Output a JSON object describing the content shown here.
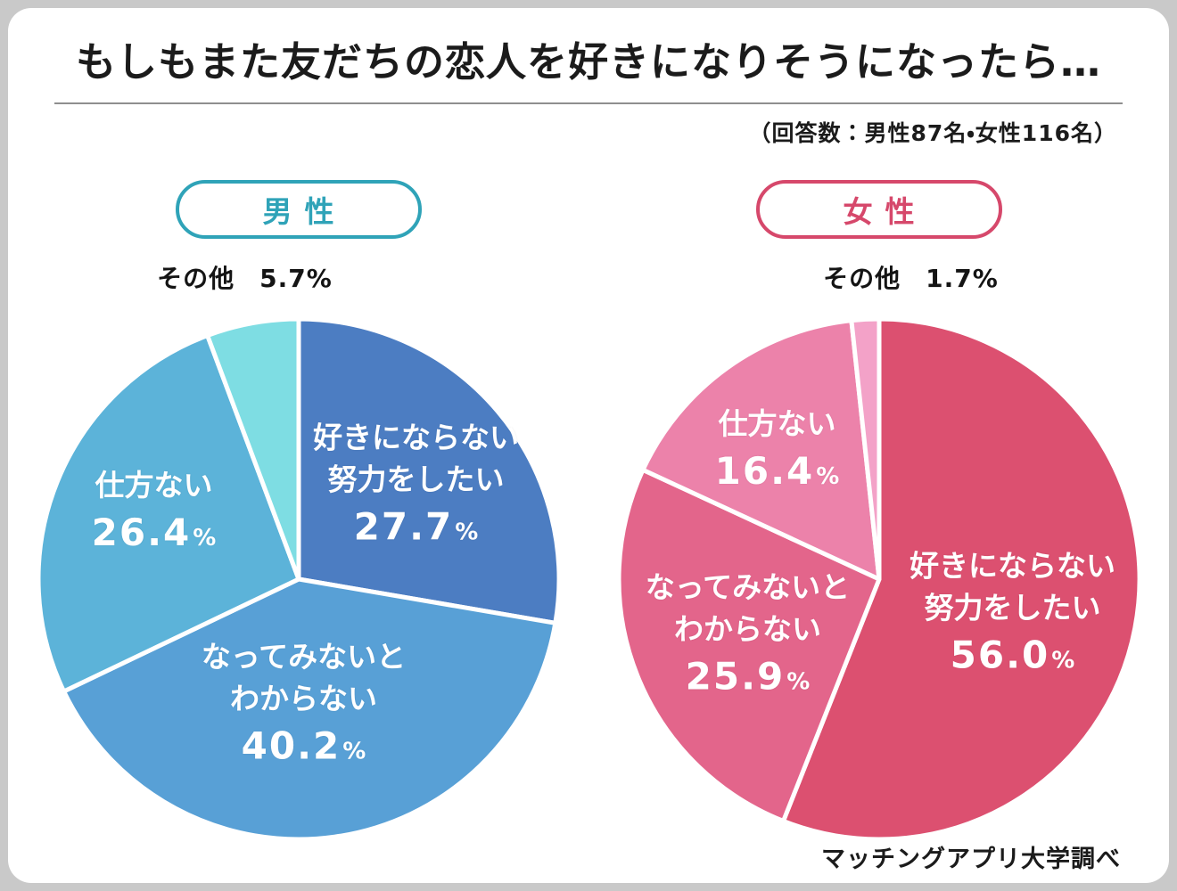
{
  "title": "もしもまた友だちの恋人を好きになりそうになったら…",
  "subtitle": "（回答数：男性87名・女性116名）",
  "source": "マッチングアプリ大学調べ",
  "chart_data": [
    {
      "type": "pie",
      "title": "男性",
      "unit": "%",
      "accent_color": "#2fa3b8",
      "legend_position": "above",
      "slices": [
        {
          "label": "好きにならない\n努力をしたい",
          "value": 27.7,
          "value_label": "27.7",
          "color": "#4c7dc2"
        },
        {
          "label": "なってみないと\nわからない",
          "value": 40.2,
          "value_label": "40.2",
          "color": "#58a0d6"
        },
        {
          "label": "仕方ない",
          "value": 26.4,
          "value_label": "26.4",
          "color": "#5cb3d9"
        },
        {
          "label": "その他",
          "value": 5.7,
          "value_label": "5.7",
          "color": "#7edde3",
          "label_outside": true
        }
      ]
    },
    {
      "type": "pie",
      "title": "女性",
      "unit": "%",
      "accent_color": "#d6486b",
      "legend_position": "above",
      "slices": [
        {
          "label": "好きにならない\n努力をしたい",
          "value": 56.0,
          "value_label": "56.0",
          "color": "#dc5070"
        },
        {
          "label": "なってみないと\nわからない",
          "value": 25.9,
          "value_label": "25.9",
          "color": "#e3658b"
        },
        {
          "label": "仕方ない",
          "value": 16.4,
          "value_label": "16.4",
          "color": "#ec82aa"
        },
        {
          "label": "その他",
          "value": 1.7,
          "value_label": "1.7",
          "color": "#f3a2c8",
          "label_outside": true
        }
      ]
    }
  ]
}
